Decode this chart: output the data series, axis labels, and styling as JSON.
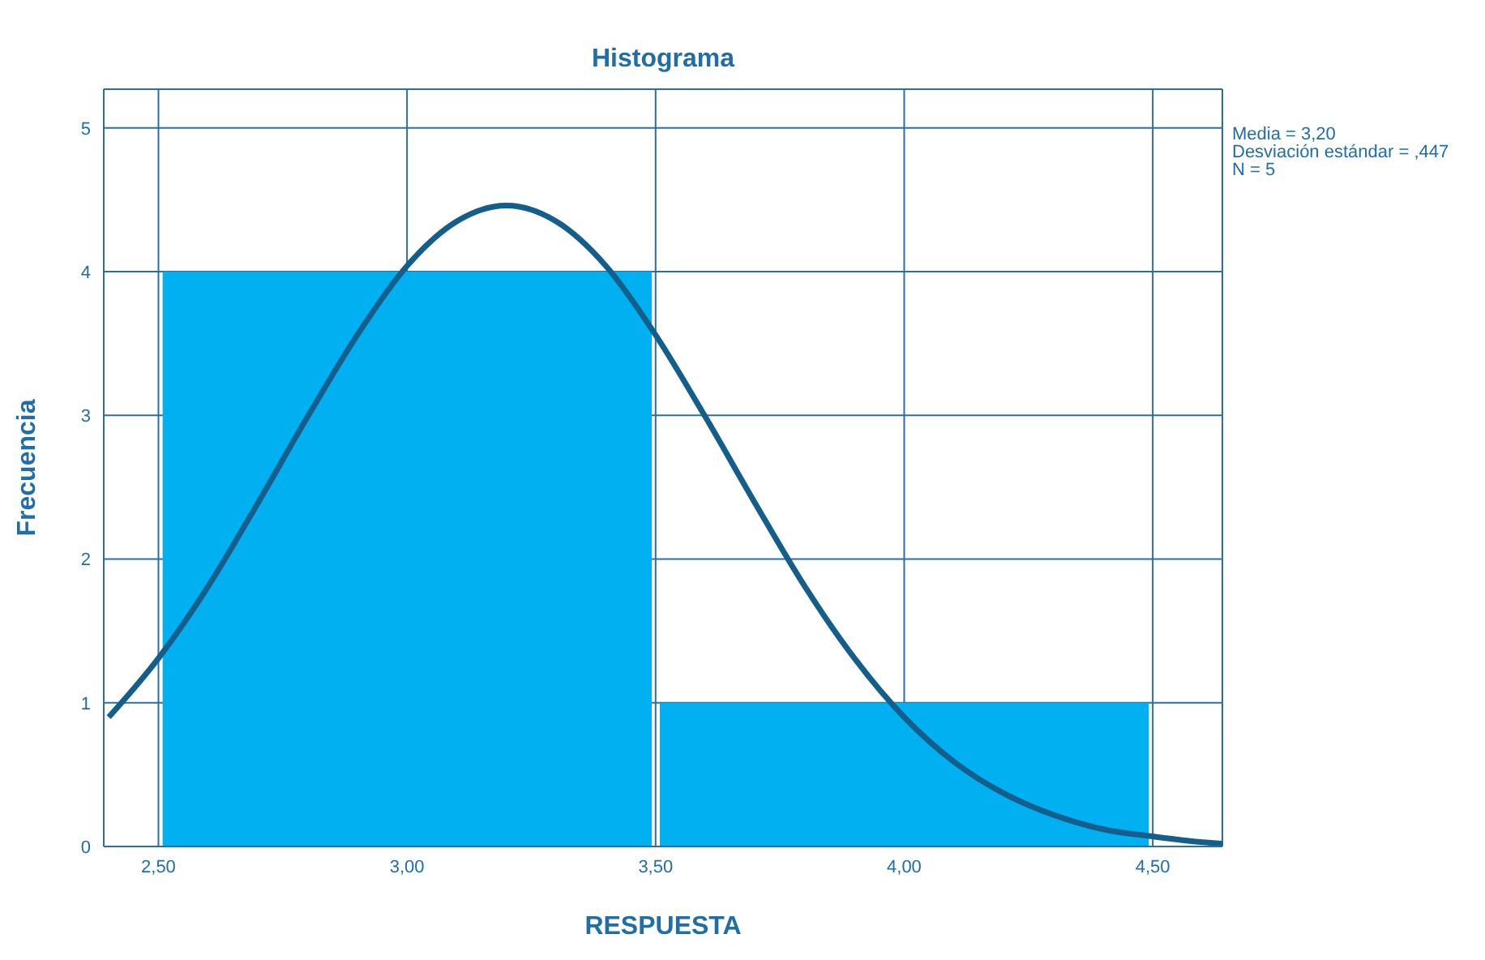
{
  "chart_data": {
    "type": "histogram",
    "title": "Histograma",
    "xlabel": "RESPUESTA",
    "ylabel": "Frecuencia",
    "bins": [
      2.5,
      3.5,
      4.5
    ],
    "values": [
      4,
      1
    ],
    "color": "#00b0f0",
    "series": [
      {
        "type": "line",
        "color": "#145e8c",
        "x": [
          2.4,
          2.5,
          2.6,
          2.7,
          2.8,
          2.9,
          3.0,
          3.1,
          3.2,
          3.3,
          3.4,
          3.5,
          3.6,
          3.7,
          3.8,
          3.9,
          4.0,
          4.1,
          4.2,
          4.3,
          4.4,
          4.5,
          4.6,
          4.64
        ],
        "values": [
          0.9,
          1.31,
          1.81,
          2.39,
          2.99,
          3.56,
          4.04,
          4.35,
          4.46,
          4.35,
          4.04,
          3.56,
          2.99,
          2.39,
          1.81,
          1.31,
          0.9,
          0.59,
          0.37,
          0.22,
          0.12,
          0.07,
          0.03,
          0.02
        ]
      }
    ],
    "xlim": [
      2.39,
      4.64
    ],
    "ylim": [
      0,
      5.27
    ],
    "xticks": [
      {
        "value": 2.5,
        "label": "2,50"
      },
      {
        "value": 3.0,
        "label": "3,00"
      },
      {
        "value": 3.5,
        "label": "3,50"
      },
      {
        "value": 4.0,
        "label": "4,00"
      },
      {
        "value": 4.5,
        "label": "4,50"
      }
    ],
    "yticks": [
      0,
      1,
      2,
      3,
      4,
      5
    ],
    "grid": true,
    "annotations": [
      "Media = 3,20",
      "Desviación estándar = ,447",
      "N = 5"
    ]
  }
}
